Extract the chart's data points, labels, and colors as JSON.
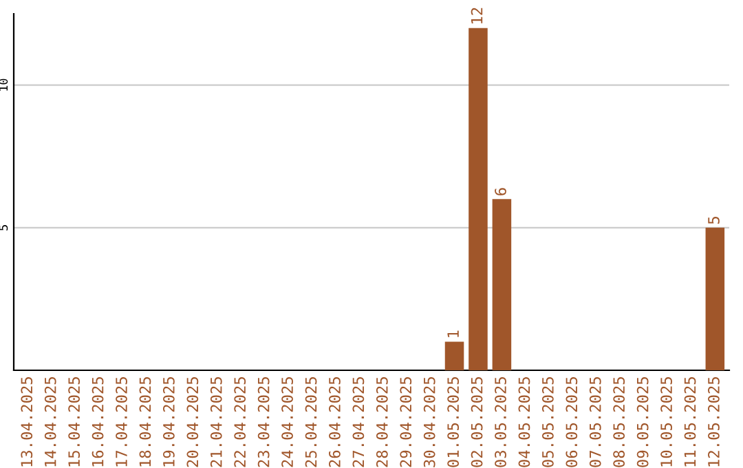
{
  "chart_data": {
    "type": "bar",
    "categories": [
      "13.04.2025",
      "14.04.2025",
      "15.04.2025",
      "16.04.2025",
      "17.04.2025",
      "18.04.2025",
      "19.04.2025",
      "20.04.2025",
      "21.04.2025",
      "22.04.2025",
      "23.04.2025",
      "24.04.2025",
      "25.04.2025",
      "26.04.2025",
      "27.04.2025",
      "28.04.2025",
      "29.04.2025",
      "30.04.2025",
      "01.05.2025",
      "02.05.2025",
      "03.05.2025",
      "04.05.2025",
      "05.05.2025",
      "06.05.2025",
      "07.05.2025",
      "08.05.2025",
      "09.05.2025",
      "10.05.2025",
      "11.05.2025",
      "12.05.2025"
    ],
    "values": [
      0,
      0,
      0,
      0,
      0,
      0,
      0,
      0,
      0,
      0,
      0,
      0,
      0,
      0,
      0,
      0,
      0,
      0,
      1,
      12,
      6,
      0,
      0,
      0,
      0,
      0,
      0,
      0,
      0,
      5
    ],
    "value_labels": [
      null,
      null,
      null,
      null,
      null,
      null,
      null,
      null,
      null,
      null,
      null,
      null,
      null,
      null,
      null,
      null,
      null,
      null,
      "1",
      "12",
      "6",
      null,
      null,
      null,
      null,
      null,
      null,
      null,
      null,
      "5"
    ],
    "color": "#a0562a",
    "ylim": [
      0,
      12.5
    ],
    "yticks": [
      5,
      10
    ],
    "grid": "y"
  }
}
